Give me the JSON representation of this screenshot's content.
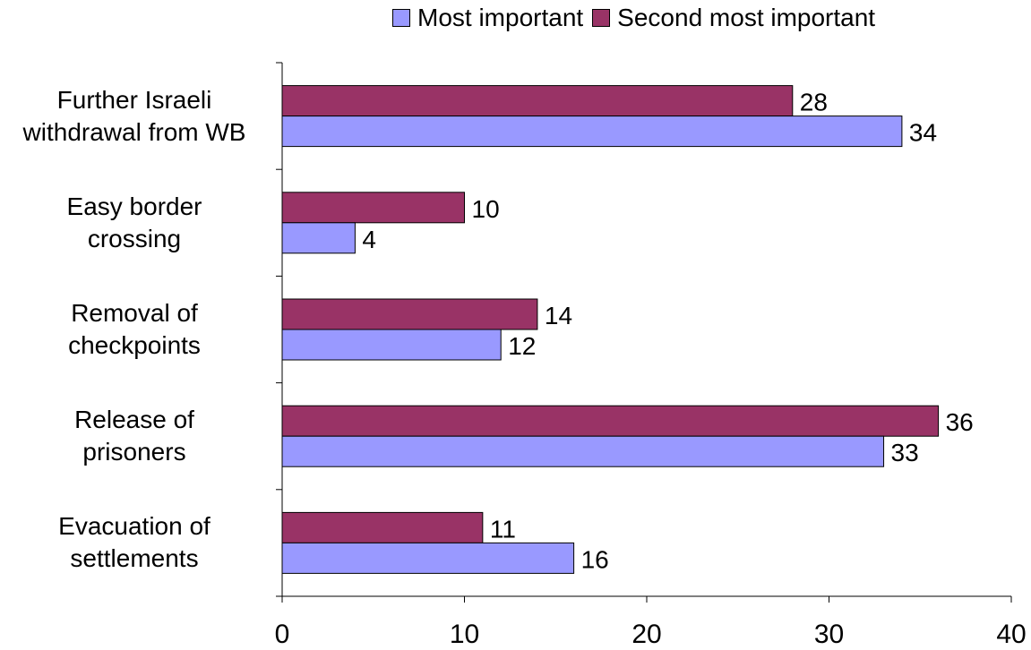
{
  "chart_data": {
    "type": "bar",
    "orientation": "horizontal",
    "categories": [
      [
        "Further Israeli",
        "withdrawal from WB"
      ],
      [
        "Easy border",
        "crossing"
      ],
      [
        "Removal of",
        "checkpoints"
      ],
      [
        "Release of",
        "prisoners"
      ],
      [
        "Evacuation of",
        "settlements"
      ]
    ],
    "series": [
      {
        "name": "Most important",
        "values": [
          34,
          4,
          12,
          33,
          16
        ],
        "color": "#9999ff"
      },
      {
        "name": "Second most important",
        "values": [
          28,
          10,
          14,
          36,
          11
        ],
        "color": "#993366"
      }
    ],
    "x_ticks": [
      "0",
      "10",
      "20",
      "30",
      "40"
    ],
    "xlim": [
      0,
      40
    ],
    "legend_position": "top",
    "grid": false
  }
}
